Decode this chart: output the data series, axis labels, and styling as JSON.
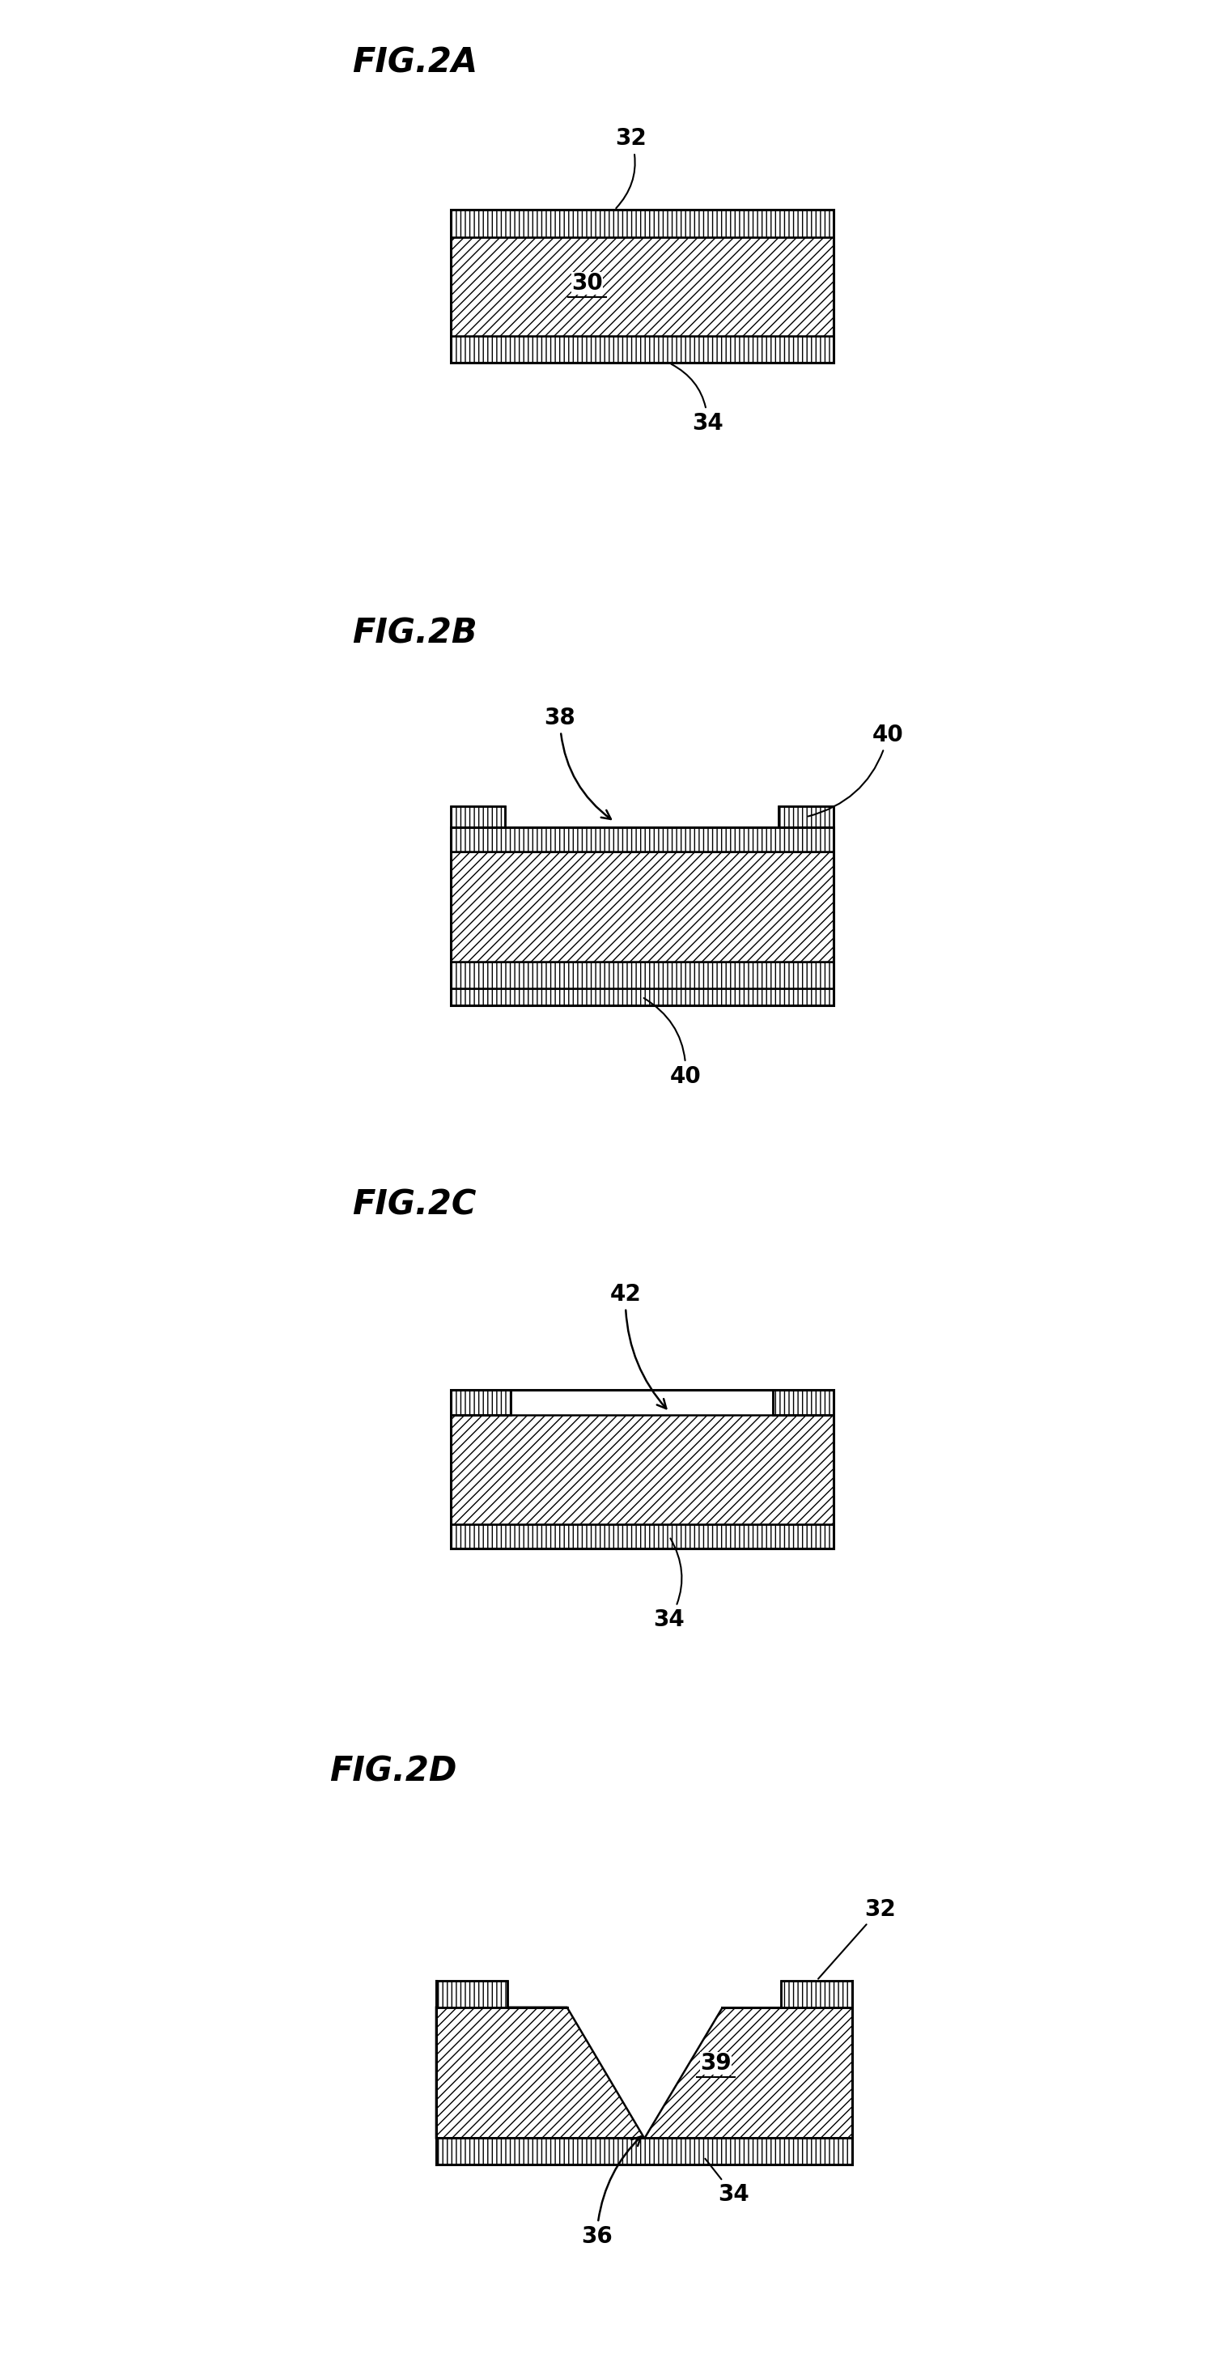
{
  "fig_labels": [
    "FIG.2A",
    "FIG.2B",
    "FIG.2C",
    "FIG.2D"
  ],
  "background_color": "#ffffff",
  "membrane_hatch": "///",
  "oxide_hatch": "|||",
  "label_fontsize": 20,
  "fig_label_fontsize": 30,
  "lw": 1.8
}
